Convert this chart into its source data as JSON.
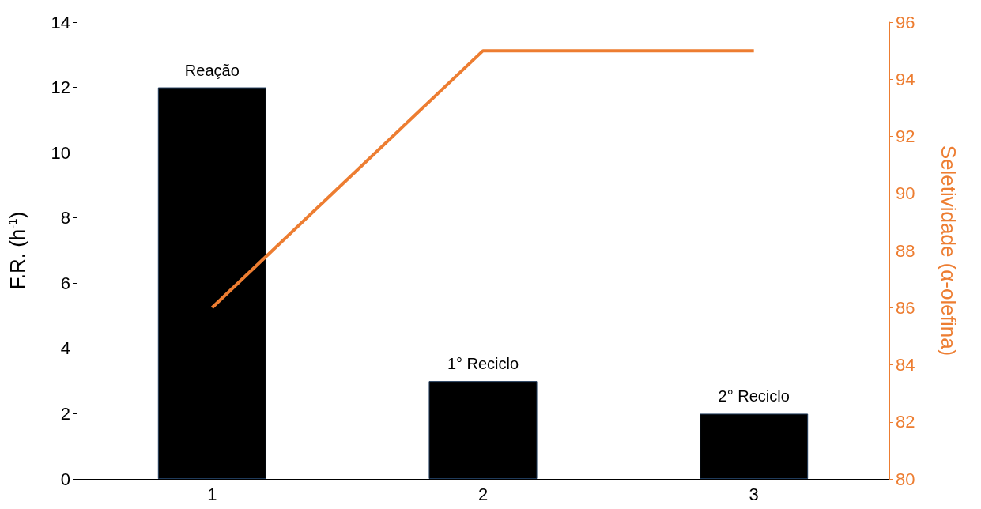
{
  "chart_data": {
    "type": "bar",
    "categories": [
      "1",
      "2",
      "3"
    ],
    "ylabel": "F.R. (h$^{-1}$)",
    "y2label": "Seletividade (α-olefina)",
    "series": [
      {
        "color": "#000000",
        "values": [
          12,
          3,
          2
        ]
      },
      {
        "type": "line",
        "axis": "y2",
        "color": "#ed7d31",
        "values": [
          86,
          95,
          95
        ]
      }
    ],
    "ylim": [
      0,
      14
    ],
    "yticks": [
      0,
      2,
      4,
      6,
      8,
      10,
      12,
      14
    ],
    "y2lim": [
      80,
      96
    ],
    "y2ticks": [
      80,
      82,
      84,
      86,
      88,
      90,
      92,
      94,
      96
    ],
    "annotations": [
      {
        "text": "Reação",
        "x": "1",
        "y": 12
      },
      {
        "text": "1° Reciclo",
        "x": "2",
        "y": 3
      },
      {
        "text": "2° Reciclo",
        "x": "3",
        "y": 2
      }
    ],
    "grid": false,
    "marker": "none",
    "line_style": "solid"
  }
}
